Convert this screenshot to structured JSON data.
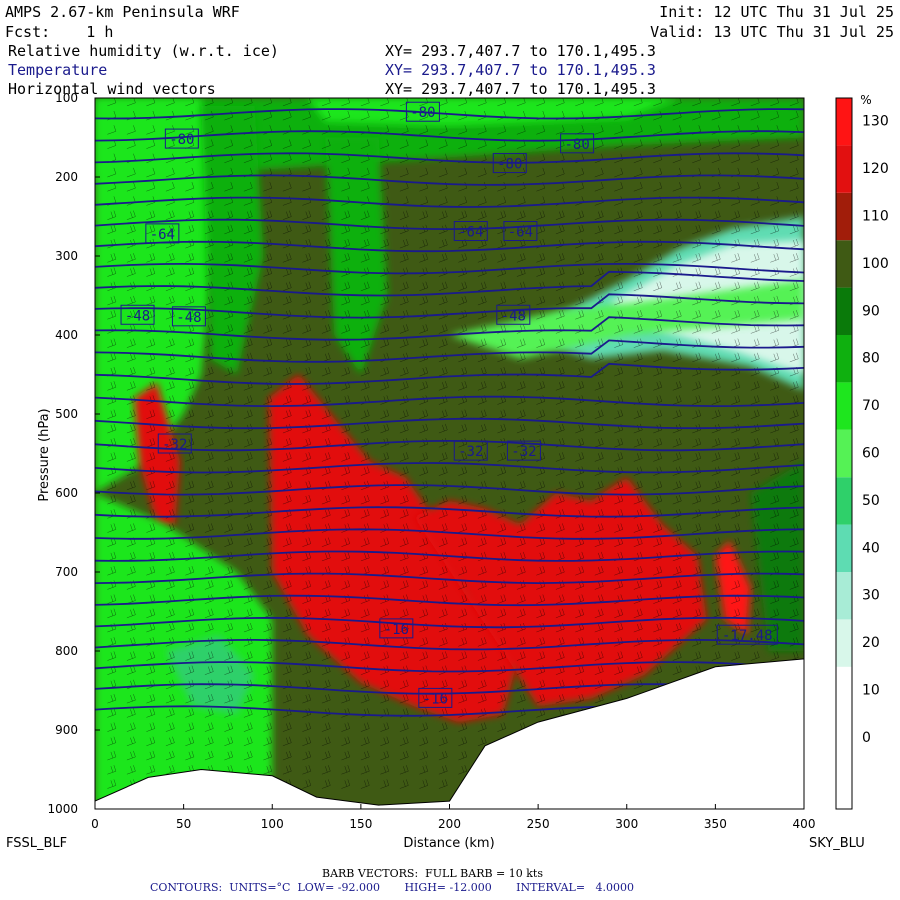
{
  "header": {
    "model": "AMPS 2.67-km Peninsula WRF",
    "fcst": "Fcst:    1 h",
    "init": "Init: 12 UTC Thu 31 Jul 25",
    "valid": "Valid: 13 UTC Thu 31 Jul 25",
    "field1": "Relative humidity (w.r.t. ice)",
    "field2": "Temperature",
    "field3": "Horizontal wind vectors",
    "xy": "XY= 293.7,407.7 to 170.1,495.3"
  },
  "footer": {
    "left_station": "FSSL_BLF",
    "right_station": "SKY_BLU",
    "barb": "BARB VECTORS:  FULL BARB = 10 kts",
    "contours": "CONTOURS:  UNITS=°C  LOW= -92.000       HIGH= -12.000       INTERVAL=   4.0000"
  },
  "chart_data": {
    "type": "heatmap",
    "xlabel": "Distance (km)",
    "ylabel": "Pressure (hPa)",
    "xlim": [
      0,
      400
    ],
    "ylim": [
      1000,
      100
    ],
    "xticks": [
      0,
      50,
      100,
      150,
      200,
      250,
      300,
      350,
      400
    ],
    "yticks": [
      100,
      200,
      300,
      400,
      500,
      600,
      700,
      800,
      900,
      1000
    ],
    "colorbar": {
      "unit": "%",
      "levels": [
        -10,
        0,
        10,
        20,
        30,
        40,
        50,
        60,
        70,
        80,
        90,
        100,
        110,
        120,
        130,
        140
      ],
      "tick_labels": [
        "0",
        "10",
        "20",
        "30",
        "40",
        "50",
        "60",
        "70",
        "80",
        "90",
        "100",
        "110",
        "120",
        "130"
      ],
      "colors": [
        "#ffffff",
        "#ffffff",
        "#ffffff",
        "#d8f7ea",
        "#a8ecd6",
        "#5edcb2",
        "#2fd06a",
        "#55f255",
        "#1ee61e",
        "#0fb00f",
        "#0a7a0a",
        "#3f5a14",
        "#a11d0a",
        "#e21010",
        "#ff1414"
      ]
    },
    "temperature_contour_labels": [
      {
        "x": 185,
        "p": 118,
        "value": "-80"
      },
      {
        "x": 272,
        "p": 158,
        "value": "-80"
      },
      {
        "x": 49,
        "p": 152,
        "value": "-80"
      },
      {
        "x": 234,
        "p": 183,
        "value": "-80"
      },
      {
        "x": 38,
        "p": 272,
        "value": "-64"
      },
      {
        "x": 212,
        "p": 269,
        "value": "-64"
      },
      {
        "x": 240,
        "p": 269,
        "value": "-64"
      },
      {
        "x": 24,
        "p": 375,
        "value": "-48"
      },
      {
        "x": 53,
        "p": 377,
        "value": "-48"
      },
      {
        "x": 236,
        "p": 375,
        "value": "-48"
      },
      {
        "x": 45,
        "p": 538,
        "value": "-32"
      },
      {
        "x": 212,
        "p": 547,
        "value": "-32"
      },
      {
        "x": 242,
        "p": 547,
        "value": "-32"
      },
      {
        "x": 170,
        "p": 772,
        "value": "-16"
      },
      {
        "x": 192,
        "p": 860,
        "value": "-16"
      },
      {
        "x": 368,
        "p": 780,
        "value": "-17.48"
      }
    ],
    "terrain_top_hpa": [
      {
        "x": 0,
        "p": 990
      },
      {
        "x": 30,
        "p": 960
      },
      {
        "x": 60,
        "p": 950
      },
      {
        "x": 100,
        "p": 958
      },
      {
        "x": 125,
        "p": 985
      },
      {
        "x": 160,
        "p": 995
      },
      {
        "x": 200,
        "p": 990
      },
      {
        "x": 220,
        "p": 920
      },
      {
        "x": 250,
        "p": 890
      },
      {
        "x": 300,
        "p": 860
      },
      {
        "x": 350,
        "p": 820
      },
      {
        "x": 400,
        "p": 810
      }
    ],
    "grid": false
  }
}
